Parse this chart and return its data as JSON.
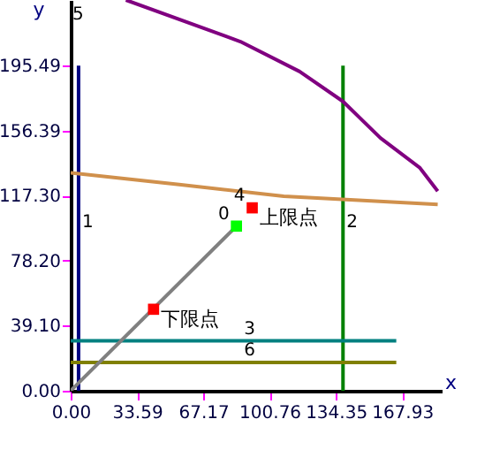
{
  "chart_data": {
    "type": "line",
    "xlabel": "x",
    "ylabel": "y",
    "xlim": [
      0,
      188
    ],
    "ylim": [
      0,
      235
    ],
    "xticks": [
      {
        "value": 0,
        "label": "0.00"
      },
      33.59,
      67.17,
      100.76,
      134.35,
      167.93
    ],
    "yticks": [
      {
        "value": 0,
        "label": "0.00"
      },
      {
        "value": 39.1,
        "label": "39.10"
      },
      {
        "value": 78.2,
        "label": "78.20"
      },
      {
        "value": 117.3,
        "label": "117.30"
      },
      156.39,
      195.49
    ],
    "grid": false,
    "marker": "none",
    "line_style": "solid",
    "series": [
      {
        "name": "1",
        "color": "#000080",
        "x": [
          4,
          4,
          4
        ],
        "values": [
          0,
          94,
          195.49
        ]
      },
      {
        "name": "2",
        "color": "#008000",
        "x": [
          138,
          138,
          138
        ],
        "values": [
          0,
          94,
          195.49
        ]
      },
      {
        "name": "3",
        "color": "#008080",
        "x": [
          0,
          86,
          165
        ],
        "values": [
          30,
          30,
          30
        ]
      },
      {
        "name": "6",
        "color": "#808000",
        "x": [
          0,
          86,
          165
        ],
        "values": [
          17,
          17,
          17
        ]
      },
      {
        "color": "#d0904c",
        "x": [
          0,
          55,
          108,
          186
        ],
        "values": [
          131,
          124,
          117,
          112
        ]
      },
      {
        "color": "#800080",
        "x": [
          28,
          86,
          116,
          138,
          157,
          177,
          186
        ],
        "values": [
          235,
          210,
          192,
          174,
          152,
          134,
          120
        ]
      },
      {
        "color": "#808080",
        "x": [
          0,
          84
        ],
        "values": [
          0,
          99
        ]
      },
      {
        "type": "scatter",
        "marker": "square",
        "color": "#ff0000",
        "x": [
          42
        ],
        "values": [
          49
        ]
      },
      {
        "type": "scatter",
        "name": "4",
        "marker": "square",
        "color": "#ff0000",
        "x": [
          92
        ],
        "values": [
          110
        ]
      },
      {
        "type": "scatter",
        "name": "0",
        "marker": "square",
        "color": "#00ff00",
        "x": [
          84
        ],
        "values": [
          99
        ]
      }
    ],
    "annotations": [
      {
        "text": "下限点",
        "x": 42,
        "y": 49
      },
      {
        "text": "上限点",
        "x": 92,
        "y": 110
      },
      "5"
    ]
  }
}
